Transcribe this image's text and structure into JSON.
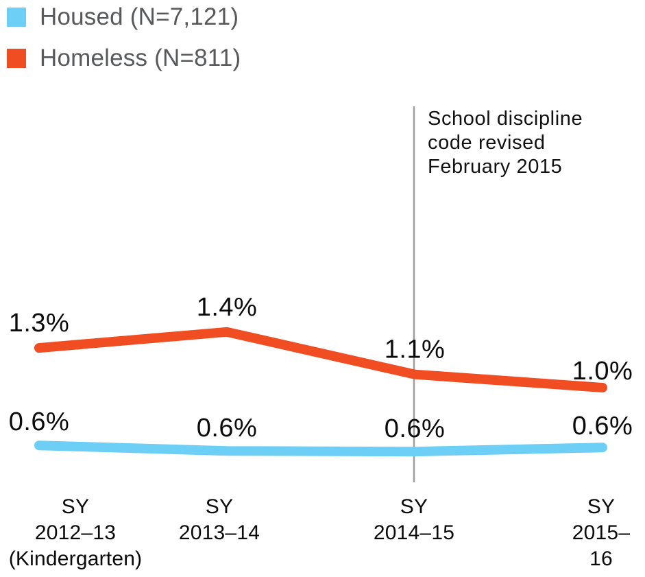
{
  "legend": {
    "items": [
      {
        "label": "Housed (N=7,121)",
        "color": "#6dcff6"
      },
      {
        "label": "Homeless (N=811)",
        "color": "#f04d23"
      }
    ]
  },
  "annotation": {
    "text": "School discipline\ncode revised\nFebruary 2015"
  },
  "chart_data": {
    "type": "line",
    "title": "",
    "xlabel": "",
    "ylabel": "",
    "unit": "percent",
    "grid": false,
    "legend_position": "top-left",
    "ylim": [
      0,
      1.6
    ],
    "categories": [
      "SY\n2012–13\n(Kindergarten)",
      "SY\n2013–14",
      "SY\n2014–15",
      "SY\n2015–16"
    ],
    "series": [
      {
        "name": "Homeless (N=811)",
        "color": "#f04d23",
        "values": [
          1.3,
          1.4,
          1.1,
          1.0
        ],
        "point_labels": [
          "1.3%",
          "1.4%",
          "1.1%",
          "1.0%"
        ]
      },
      {
        "name": "Housed (N=7,121)",
        "color": "#6dcff6",
        "values": [
          0.6,
          0.6,
          0.6,
          0.6
        ],
        "point_labels": [
          "0.6%",
          "0.6%",
          "0.6%",
          "0.6%"
        ]
      }
    ],
    "event_line": {
      "at_category": "SY 2014–15",
      "color": "#9e9e9e",
      "label": "School discipline code revised February 2015"
    }
  }
}
